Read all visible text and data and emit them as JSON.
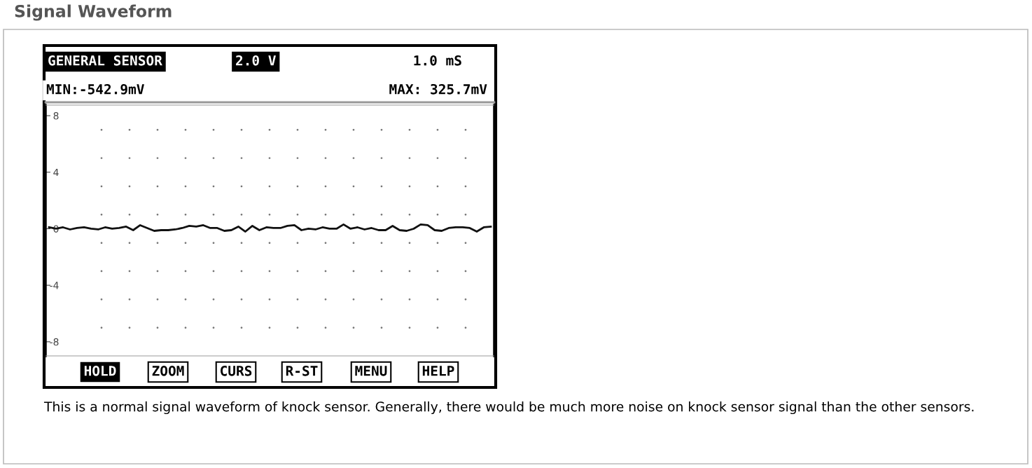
{
  "chart_data": {
    "type": "line",
    "title": "Signal Waveform",
    "categories": [
      null,
      null,
      null,
      null,
      null,
      null,
      null,
      null,
      null,
      null,
      null,
      null,
      null,
      null,
      null,
      null,
      null,
      null,
      null,
      null,
      null,
      null,
      null,
      null,
      null,
      null,
      null,
      null,
      null,
      null,
      null,
      null,
      null,
      null,
      null,
      null,
      null,
      null,
      null,
      null,
      null,
      null,
      null,
      null,
      null,
      null,
      null,
      null,
      null,
      null,
      null,
      null,
      null,
      null,
      null,
      null,
      null,
      null,
      null,
      null,
      null,
      null,
      null,
      null
    ],
    "series": [
      {
        "color": "#111111",
        "values": [
          0.1,
          0.0,
          0.1,
          -0.05,
          0.05,
          0.1,
          0.0,
          -0.05,
          0.1,
          0.0,
          0.05,
          0.15,
          -0.1,
          0.25,
          0.05,
          -0.15,
          -0.1,
          -0.1,
          -0.05,
          0.05,
          0.2,
          0.15,
          0.25,
          0.05,
          0.05,
          -0.15,
          -0.1,
          0.15,
          -0.2,
          0.2,
          -0.1,
          0.1,
          0.05,
          0.05,
          0.2,
          0.25,
          -0.1,
          0.0,
          -0.05,
          0.1,
          0.0,
          0.0,
          0.3,
          0.0,
          0.1,
          -0.05,
          0.05,
          -0.1,
          -0.1,
          0.2,
          -0.1,
          -0.15,
          0.0,
          0.3,
          0.25,
          -0.1,
          -0.15,
          0.05,
          0.1,
          0.1,
          0.05,
          -0.2,
          0.1,
          0.15
        ]
      }
    ],
    "ylim": [
      -9,
      8.75
    ],
    "yticks": [
      8,
      4,
      0,
      -4,
      -8
    ],
    "tick_labels": "y",
    "grid": false,
    "legend": false,
    "marker": "none",
    "line_style": "solid",
    "annotations": [
      "GENERAL SENSOR",
      "2.0 V",
      "1.0 mS",
      "MIN:-542.9mV",
      "MAX: 325.7mV",
      "HOLD",
      "ZOOM",
      "CURS",
      "R-ST",
      "MENU",
      "HELP",
      "This is a normal signal waveform of knock sensor. Generally, there would be much more noise on knock sensor signal than the other sensors."
    ]
  }
}
